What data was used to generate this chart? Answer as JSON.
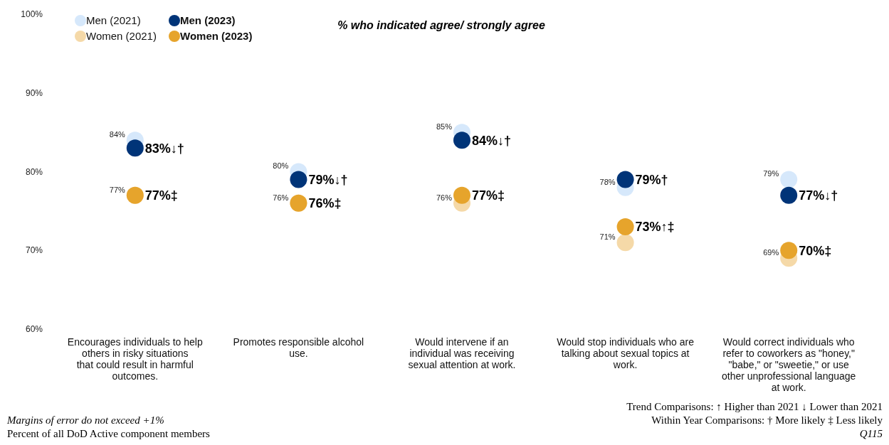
{
  "chart_data": {
    "type": "scatter",
    "title": "% who indicated agree/ strongly agree",
    "categories": [
      "Encourages individuals to help others in risky situations that could result in harmful outcomes.",
      "Promotes responsible alcohol use.",
      "Would intervene if an individual was receiving sexual attention at work.",
      "Would stop individuals who are talking about sexual topics at work.",
      "Would correct individuals who refer to coworkers as \"honey,\" \"babe,\" or \"sweetie,\" or use other unprofessional language at work."
    ],
    "series": [
      {
        "name": "Men (2021)",
        "color": "#d6e8fb",
        "values": [
          84,
          80,
          85,
          78,
          79
        ],
        "value_labels": [
          "84%",
          "80%",
          "85%",
          "78%",
          "79%"
        ]
      },
      {
        "name": "Women (2021)",
        "color": "#f5d9a8",
        "values": [
          77,
          76,
          76,
          71,
          69
        ],
        "value_labels": [
          "77%",
          "76%",
          "76%",
          "71%",
          "69%"
        ]
      },
      {
        "name": "Men (2023)",
        "color": "#003478",
        "values": [
          83,
          79,
          84,
          79,
          77
        ],
        "value_labels": [
          "83%↓†",
          "79%↓†",
          "84%↓†",
          "79%†",
          "77%↓†"
        ]
      },
      {
        "name": "Women (2023)",
        "color": "#e6a42c",
        "values": [
          77,
          76,
          77,
          73,
          70
        ],
        "value_labels": [
          "77%‡",
          "76%‡",
          "77%‡",
          "73%↑‡",
          "70%‡"
        ]
      }
    ],
    "ylim": [
      60,
      100
    ],
    "yticks": [
      {
        "value": 60,
        "label": "60%"
      },
      {
        "value": 70,
        "label": "70%"
      },
      {
        "value": 80,
        "label": "80%"
      },
      {
        "value": 90,
        "label": "90%"
      },
      {
        "value": 100,
        "label": "100%"
      }
    ],
    "grid": false,
    "legend": "top left",
    "marker": "circle",
    "annotations": [
      "Trend Comparisons: ↑ Higher than 2021 ↓ Lower than 2021",
      "Within Year Comparisons: † More likely ‡ Less likely",
      "Q115",
      "Margins of error do not exceed +1%",
      "Percent of all DoD Active component members"
    ]
  }
}
